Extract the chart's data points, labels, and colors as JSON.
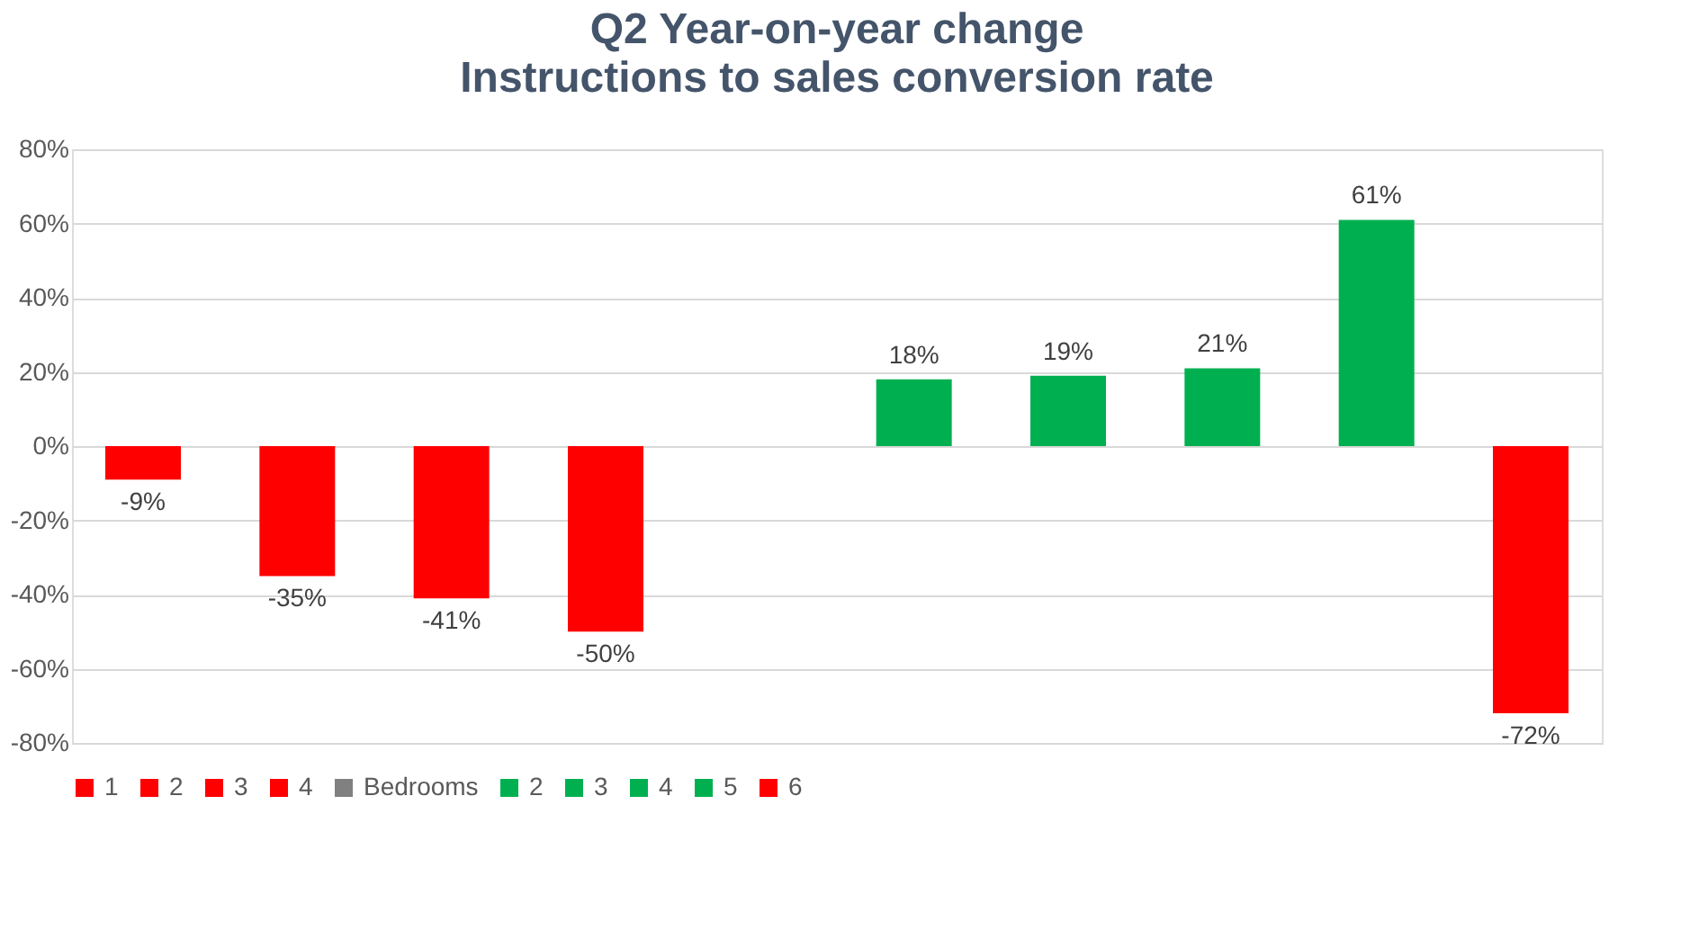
{
  "chart_data": {
    "type": "bar",
    "title": "Q2 Year-on-year change",
    "subtitle": "Instructions to sales conversion rate",
    "categories": [
      null
    ],
    "series": [
      {
        "name": "1",
        "color": "#ff0000",
        "values": [
          -9
        ],
        "value_labels": [
          "-9%"
        ]
      },
      {
        "name": "2",
        "color": "#ff0000",
        "values": [
          -35
        ],
        "value_labels": [
          "-35%"
        ]
      },
      {
        "name": "3",
        "color": "#ff0000",
        "values": [
          -41
        ],
        "value_labels": [
          "-41%"
        ]
      },
      {
        "name": "4",
        "color": "#ff0000",
        "values": [
          -50
        ],
        "value_labels": [
          "-50%"
        ]
      },
      {
        "name": "Bedrooms",
        "color": "#808080",
        "values": [
          null
        ],
        "value_labels": [
          null
        ]
      },
      {
        "name": "2",
        "color": "#00b050",
        "values": [
          18
        ],
        "value_labels": [
          "18%"
        ]
      },
      {
        "name": "3",
        "color": "#00b050",
        "values": [
          19
        ],
        "value_labels": [
          "19%"
        ]
      },
      {
        "name": "4",
        "color": "#00b050",
        "values": [
          21
        ],
        "value_labels": [
          "21%"
        ]
      },
      {
        "name": "5",
        "color": "#00b050",
        "values": [
          61
        ],
        "value_labels": [
          "61%"
        ]
      },
      {
        "name": "6",
        "color": "#ff0000",
        "values": [
          -72
        ],
        "value_labels": [
          "-72%"
        ]
      }
    ],
    "ylim": [
      -80,
      80
    ],
    "yticks": [
      {
        "value": -80,
        "label": "-80%"
      },
      {
        "value": -60,
        "label": "-60%"
      },
      {
        "value": -40,
        "label": "-40%"
      },
      {
        "value": -20,
        "label": "-20%"
      },
      {
        "value": 0,
        "label": "0%"
      },
      {
        "value": 20,
        "label": "20%"
      },
      {
        "value": 40,
        "label": "40%"
      },
      {
        "value": 60,
        "label": "60%"
      },
      {
        "value": 80,
        "label": "80%"
      }
    ],
    "grid": "y",
    "legend": "bottom",
    "tick_labels": "y"
  }
}
